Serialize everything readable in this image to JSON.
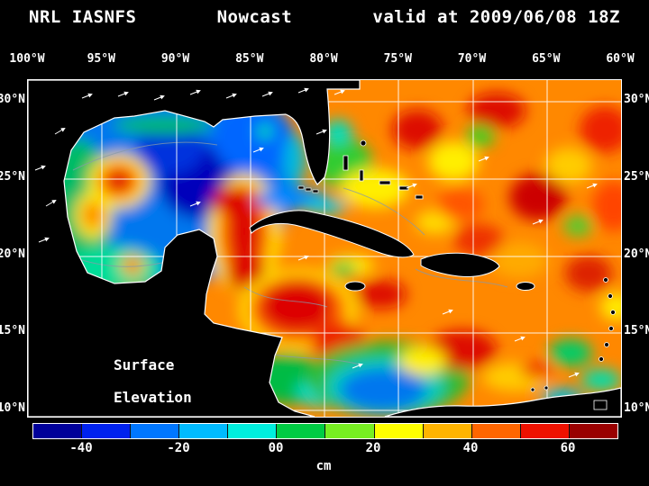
{
  "title": {
    "product": "NRL IASNFS",
    "run_type": "Nowcast",
    "valid": "valid at 2009/06/08 18Z"
  },
  "map": {
    "x_axis_labels": [
      "100°W",
      "95°W",
      "90°W",
      "85°W",
      "80°W",
      "75°W",
      "70°W",
      "65°W",
      "60°W"
    ],
    "y_axis_labels": [
      "30°N",
      "25°N",
      "20°N",
      "15°N",
      "10°N"
    ],
    "overlay": {
      "line1": "Surface",
      "line2": "Elevation"
    }
  },
  "colorbar": {
    "unit": "cm",
    "tick_labels": [
      "-40",
      "-20",
      "00",
      "20",
      "40",
      "60"
    ],
    "segment_colors": [
      "#000099",
      "#0022ee",
      "#0077ff",
      "#00bbff",
      "#00eedd",
      "#00cc44",
      "#77ee22",
      "#ffff00",
      "#ffb400",
      "#ff6600",
      "#ee1100",
      "#990000"
    ]
  }
}
